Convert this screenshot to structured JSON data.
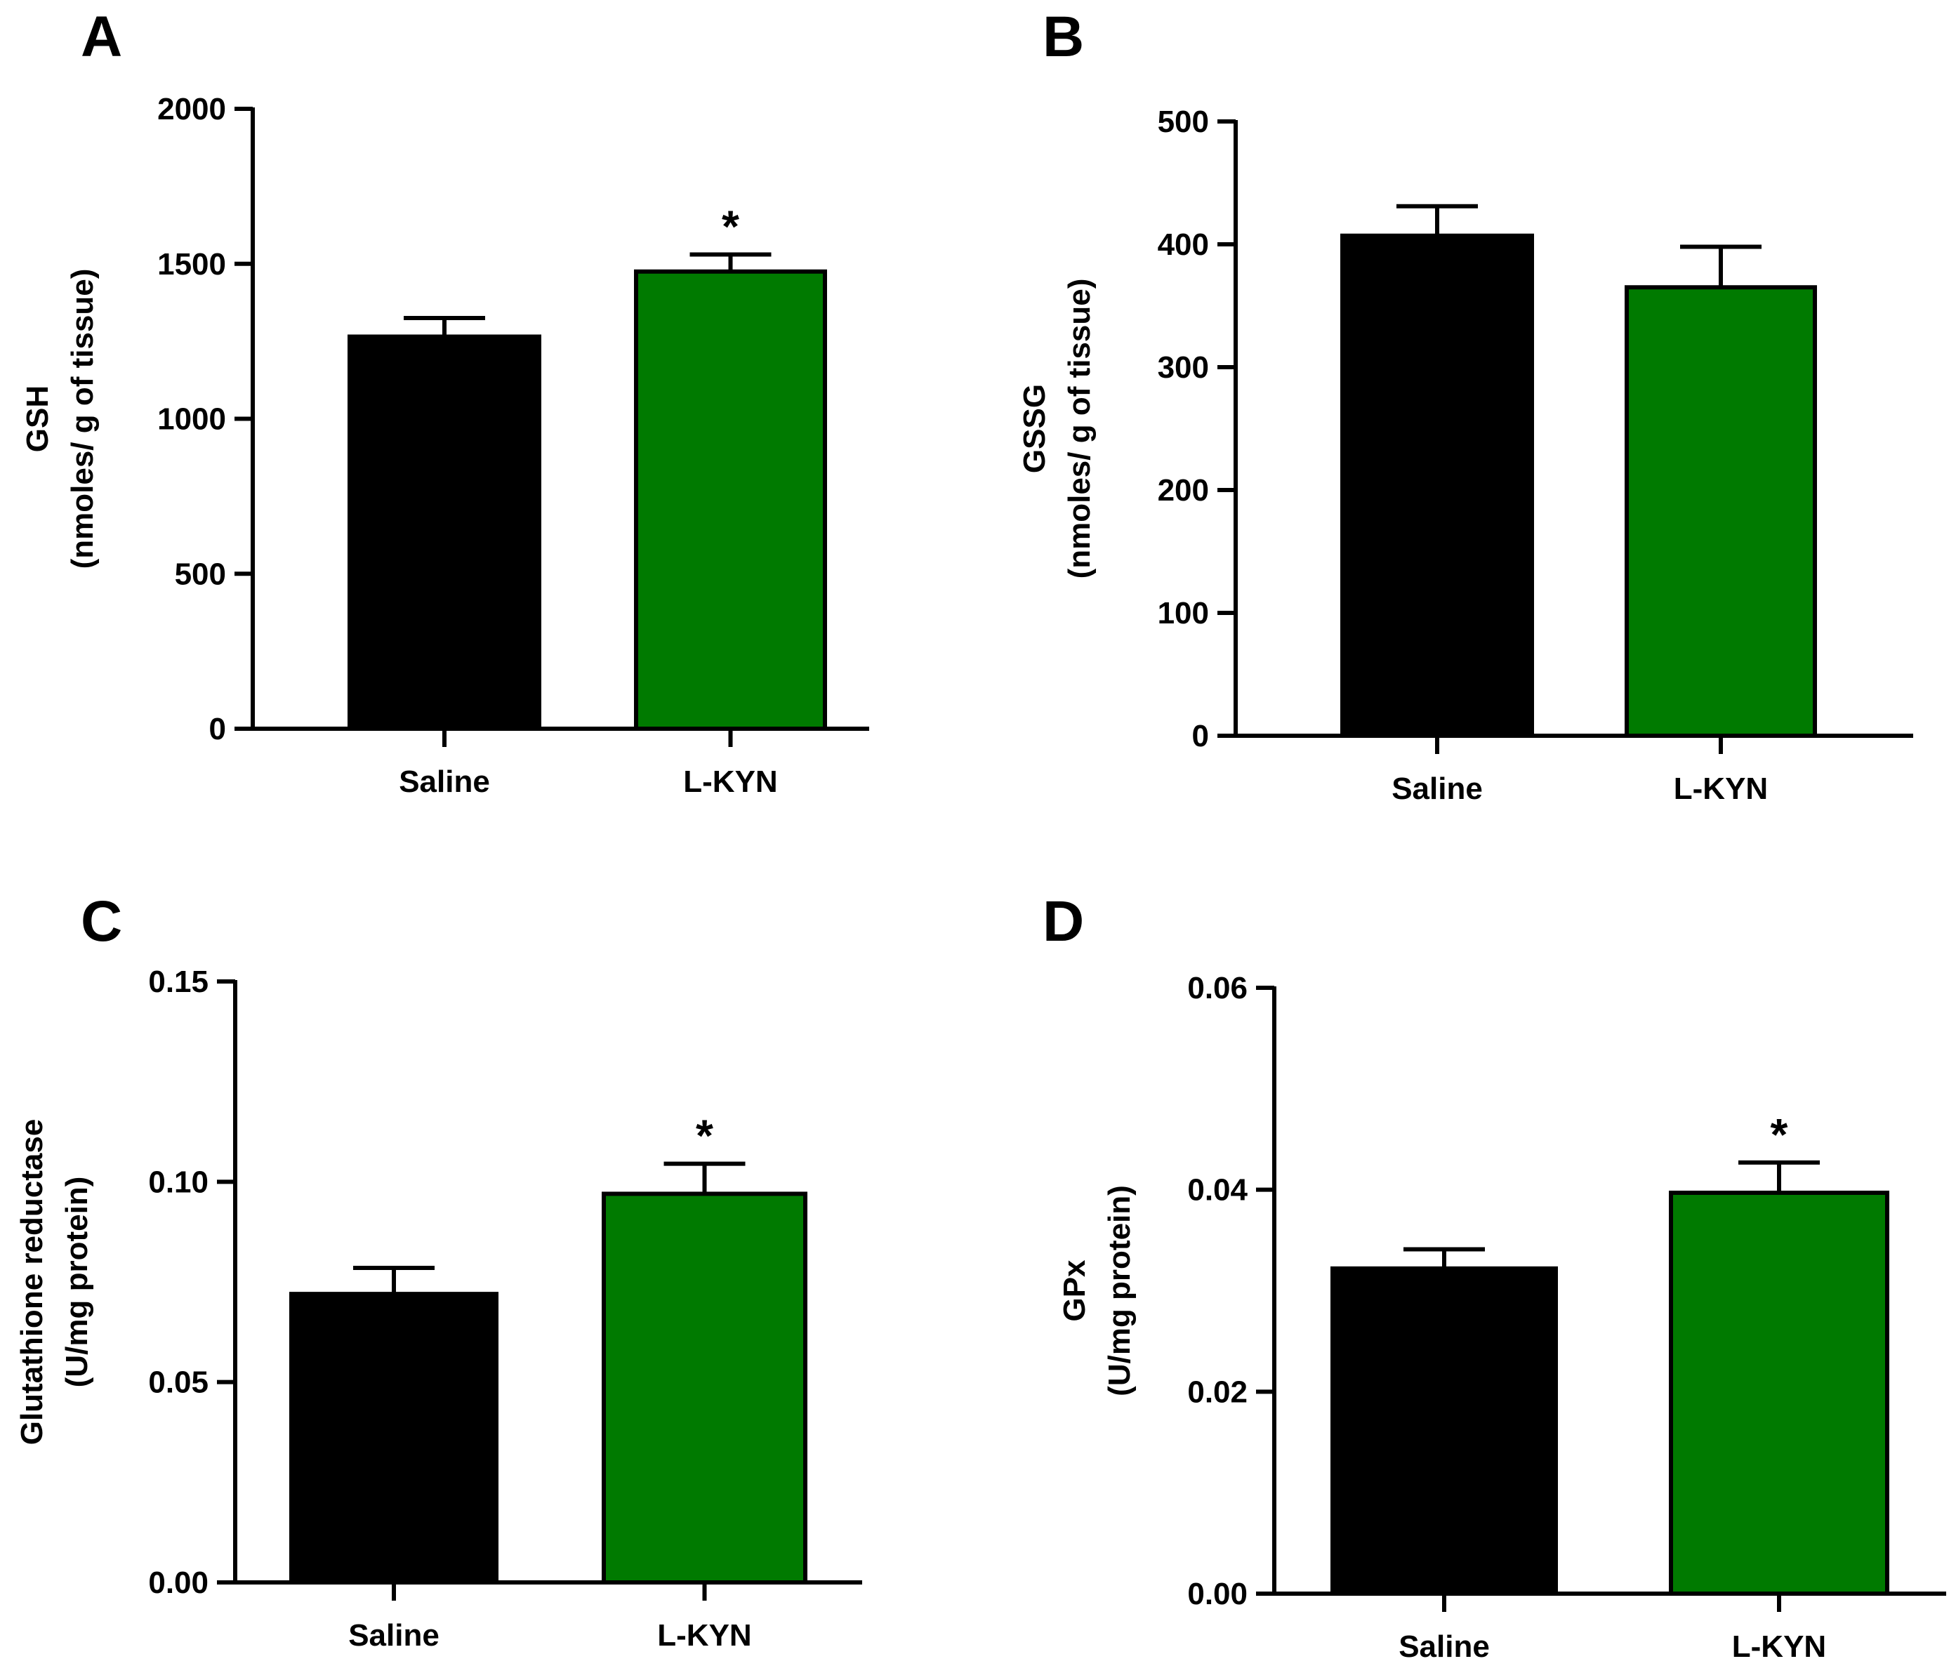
{
  "figure": {
    "panels": [
      "A",
      "B",
      "C",
      "D"
    ]
  },
  "colors": {
    "saline": "#000000",
    "lkyn": "#007a00",
    "axis": "#000000"
  },
  "chart_data": [
    {
      "panel": "A",
      "type": "bar",
      "categories": [
        "Saline",
        "L-KYN"
      ],
      "values": [
        1265,
        1475
      ],
      "errors": [
        60,
        55
      ],
      "significance": [
        "",
        "*"
      ],
      "ylabel_line1": "GSH",
      "ylabel_line2": "(nmoles/ g of tissue)",
      "ylim": [
        0,
        2000
      ],
      "yticks": [
        0,
        500,
        1000,
        1500,
        2000
      ],
      "ytick_labels": [
        "0",
        "500",
        "1000",
        "1500",
        "2000"
      ]
    },
    {
      "panel": "B",
      "type": "bar",
      "categories": [
        "Saline",
        "L-KYN"
      ],
      "values": [
        407,
        365
      ],
      "errors": [
        24,
        33
      ],
      "significance": [
        "",
        ""
      ],
      "ylabel_line1": "GSSG",
      "ylabel_line2": "(nmoles/ g of tissue)",
      "ylim": [
        0,
        500
      ],
      "yticks": [
        0,
        100,
        200,
        300,
        400,
        500
      ],
      "ytick_labels": [
        "0",
        "100",
        "200",
        "300",
        "400",
        "500"
      ]
    },
    {
      "panel": "C",
      "type": "bar",
      "categories": [
        "Saline",
        "L-KYN"
      ],
      "values": [
        0.072,
        0.097
      ],
      "errors": [
        0.0065,
        0.0075
      ],
      "significance": [
        "",
        "*"
      ],
      "ylabel_line1": "Glutathione reductase",
      "ylabel_line2": "(U/mg protein)",
      "ylim": [
        0,
        0.15
      ],
      "yticks": [
        0,
        0.05,
        0.1,
        0.15
      ],
      "ytick_labels": [
        "0.00",
        "0.05",
        "0.10",
        "0.15"
      ]
    },
    {
      "panel": "D",
      "type": "bar",
      "categories": [
        "Saline",
        "L-KYN"
      ],
      "values": [
        0.0322,
        0.0397
      ],
      "errors": [
        0.0019,
        0.003
      ],
      "significance": [
        "",
        "*"
      ],
      "ylabel_line1": "GPx",
      "ylabel_line2": "(U/mg protein)",
      "ylim": [
        0,
        0.06
      ],
      "yticks": [
        0,
        0.02,
        0.04,
        0.06
      ],
      "ytick_labels": [
        "0.00",
        "0.02",
        "0.04",
        "0.06"
      ]
    }
  ]
}
